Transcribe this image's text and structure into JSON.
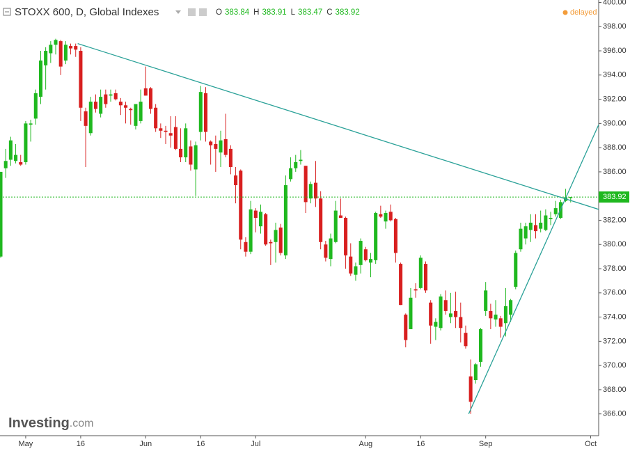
{
  "chart_data": {
    "type": "candlestick",
    "title": "STOXX 600, D, Global Indexes",
    "ohlc_letters": [
      "O",
      "H",
      "L",
      "C"
    ],
    "status": "delayed",
    "logo": {
      "brand": "Investing",
      "suffix": ".com"
    },
    "up_color": "#1fb81f",
    "down_color": "#d81f1f",
    "trendline_color": "#2aa198",
    "open": [
      379.0,
      386.3,
      387.0,
      386.9,
      386.8,
      386.8,
      389.9,
      390.4,
      392.2,
      394.8,
      395.8,
      396.5,
      396.8,
      395.2,
      396.4,
      396.4,
      396.0,
      391.0,
      389.2,
      391.8,
      390.8,
      392.4,
      392.3,
      392.5,
      391.8,
      391.5,
      391.2,
      389.8,
      390.2,
      392.9,
      392.9,
      391.3,
      389.6,
      389.4,
      389.2,
      389.7,
      387.9,
      387.2,
      388.1,
      386.2,
      389.3,
      392.5,
      388.5,
      388.3,
      387.6,
      388.7,
      387.9,
      385.7,
      386.1,
      380.2,
      379.4,
      382.8,
      381.5,
      382.5,
      380.2,
      380.2,
      381.4,
      379.1,
      385.4,
      386.3,
      386.9,
      386.5,
      383.8,
      385.1,
      383.8,
      380.0,
      378.8,
      380.2,
      382.4,
      382.2,
      379.0,
      377.5,
      378.3,
      379.6,
      378.5,
      378.7,
      382.5,
      381.9,
      382.7,
      382.1,
      378.4,
      374.2,
      373.0,
      376.3,
      376.4,
      378.4,
      375.2,
      373.2,
      373.1,
      375.4,
      374.0,
      374.5,
      374.0,
      372.7,
      369.1,
      368.8,
      370.3,
      374.5,
      374.5,
      373.8,
      373.9,
      373.5,
      374.2,
      376.5,
      379.6,
      380.5,
      381.2,
      381.6,
      381.3,
      381.2,
      382.1,
      382.5,
      382.2,
      383.6,
      383.84
    ],
    "high": [
      386.0,
      387.9,
      388.9,
      388.3,
      387.4,
      390.2,
      390.3,
      392.8,
      396.0,
      396.3,
      396.8,
      397.0,
      396.9,
      396.8,
      396.6,
      396.6,
      396.3,
      391.3,
      392.2,
      392.4,
      392.8,
      392.8,
      392.8,
      392.8,
      392.1,
      391.8,
      391.3,
      391.6,
      392.8,
      394.7,
      393.0,
      391.6,
      390.0,
      389.8,
      390.6,
      390.6,
      389.6,
      390.0,
      388.6,
      388.5,
      393.1,
      393.0,
      388.6,
      389.0,
      389.4,
      390.8,
      388.2,
      386.4,
      386.2,
      380.6,
      383.6,
      383.0,
      383.3,
      382.6,
      380.4,
      381.8,
      381.7,
      385.7,
      387.2,
      387.4,
      387.8,
      386.5,
      385.2,
      386.9,
      384.4,
      380.3,
      380.9,
      383.6,
      383.8,
      382.3,
      380.1,
      378.5,
      380.5,
      379.8,
      379.3,
      382.7,
      383.2,
      382.8,
      383.3,
      382.2,
      378.5,
      374.3,
      376.4,
      376.8,
      379.1,
      378.6,
      375.4,
      373.9,
      375.9,
      376.2,
      376.0,
      376.1,
      375.2,
      373.3,
      370.5,
      370.2,
      373.1,
      376.9,
      375.1,
      375.4,
      374.1,
      376.4,
      375.5,
      379.5,
      381.8,
      381.8,
      382.5,
      382.5,
      382.8,
      382.9,
      382.7,
      383.6,
      383.7,
      384.6,
      383.91
    ],
    "low": [
      378.9,
      385.5,
      386.5,
      386.7,
      386.5,
      386.6,
      388.5,
      389.9,
      391.6,
      392.8,
      395.0,
      395.7,
      394.0,
      394.9,
      395.7,
      395.5,
      390.2,
      386.4,
      389.0,
      390.9,
      390.5,
      391.3,
      391.8,
      391.9,
      390.7,
      390.0,
      389.9,
      389.5,
      390.0,
      392.3,
      390.8,
      389.3,
      388.8,
      388.3,
      388.0,
      387.8,
      386.8,
      386.8,
      386.1,
      384.0,
      388.6,
      388.5,
      386.6,
      386.0,
      386.4,
      387.2,
      385.8,
      383.4,
      379.6,
      379.0,
      379.2,
      381.0,
      380.9,
      379.9,
      378.3,
      378.5,
      379.1,
      378.8,
      385.2,
      386.0,
      386.6,
      382.6,
      383.4,
      383.1,
      379.6,
      378.6,
      378.2,
      380.1,
      382.2,
      378.0,
      377.4,
      377.0,
      377.6,
      378.6,
      377.3,
      378.4,
      382.2,
      381.3,
      381.9,
      378.5,
      375.0,
      371.5,
      373.0,
      375.6,
      376.3,
      376.0,
      371.8,
      372.1,
      372.9,
      374.2,
      373.5,
      373.1,
      371.9,
      371.4,
      366.0,
      368.5,
      369.9,
      374.1,
      373.0,
      373.2,
      372.3,
      372.4,
      373.6,
      376.3,
      379.4,
      380.0,
      380.2,
      380.5,
      381.0,
      381.1,
      381.6,
      382.3,
      382.1,
      383.5,
      383.47
    ],
    "close": [
      386.0,
      386.9,
      388.6,
      387.4,
      386.6,
      390.0,
      390.0,
      392.5,
      395.2,
      396.0,
      396.5,
      396.9,
      394.7,
      396.5,
      396.2,
      396.1,
      391.3,
      389.8,
      391.8,
      391.2,
      392.2,
      391.6,
      392.4,
      392.0,
      391.5,
      391.3,
      391.1,
      391.6,
      391.8,
      392.3,
      391.2,
      389.6,
      389.4,
      389.3,
      389.0,
      387.9,
      387.2,
      389.6,
      386.6,
      388.2,
      392.6,
      389.3,
      388.2,
      387.9,
      388.6,
      387.4,
      386.4,
      384.9,
      380.4,
      379.4,
      382.9,
      382.2,
      382.7,
      380.0,
      380.1,
      381.2,
      379.3,
      384.9,
      386.3,
      386.8,
      387.0,
      383.5,
      385.0,
      383.8,
      380.2,
      378.9,
      380.5,
      382.8,
      382.2,
      379.1,
      377.6,
      378.2,
      380.3,
      378.7,
      378.8,
      382.6,
      382.3,
      382.6,
      382.0,
      379.3,
      375.0,
      372.1,
      375.6,
      376.2,
      378.9,
      376.2,
      373.3,
      373.6,
      375.7,
      374.5,
      374.3,
      374.0,
      373.1,
      371.6,
      367.0,
      370.1,
      373.0,
      376.2,
      373.9,
      374.2,
      373.2,
      374.9,
      375.4,
      379.3,
      381.3,
      381.5,
      381.8,
      381.1,
      381.8,
      382.4,
      382.2,
      383.0,
      383.5,
      383.9,
      383.92
    ],
    "xlim": [
      -0.14,
      119.6
    ],
    "xticks": [
      {
        "value": 5,
        "label": "May"
      },
      {
        "value": 16,
        "label": "16"
      },
      {
        "value": 29,
        "label": "Jun"
      },
      {
        "value": 40,
        "label": "16"
      },
      {
        "value": 51,
        "label": "Jul"
      },
      {
        "value": 73,
        "label": "Aug"
      },
      {
        "value": 84,
        "label": "16"
      },
      {
        "value": 97,
        "label": "Sep"
      },
      {
        "value": 118,
        "label": "Oct"
      }
    ],
    "ylim": [
      364.2,
      400.2
    ],
    "yticks": [
      {
        "value": 366,
        "label": "366.00"
      },
      {
        "value": 368,
        "label": "368.00"
      },
      {
        "value": 370,
        "label": "370.00"
      },
      {
        "value": 372,
        "label": "372.00"
      },
      {
        "value": 374,
        "label": "374.00"
      },
      {
        "value": 376,
        "label": "376.00"
      },
      {
        "value": 378,
        "label": "378.00"
      },
      {
        "value": 380,
        "label": "380.00"
      },
      {
        "value": 382,
        "label": "382.00"
      },
      {
        "value": 384,
        "label": "384.00"
      },
      {
        "value": 386,
        "label": "386.00"
      },
      {
        "value": 388,
        "label": "388.00"
      },
      {
        "value": 390,
        "label": "390.00"
      },
      {
        "value": 392,
        "label": "392.00"
      },
      {
        "value": 394,
        "label": "394.00"
      },
      {
        "value": 396,
        "label": "396.00"
      },
      {
        "value": 398,
        "label": "398.00"
      },
      {
        "value": 400,
        "label": "400.00"
      }
    ],
    "trendlines": [
      {
        "x": [
          15.4,
          119.6
        ],
        "y": [
          396.6,
          382.9
        ]
      },
      {
        "x": [
          93.6,
          119.6
        ],
        "y": [
          366.0,
          389.9
        ]
      }
    ]
  }
}
